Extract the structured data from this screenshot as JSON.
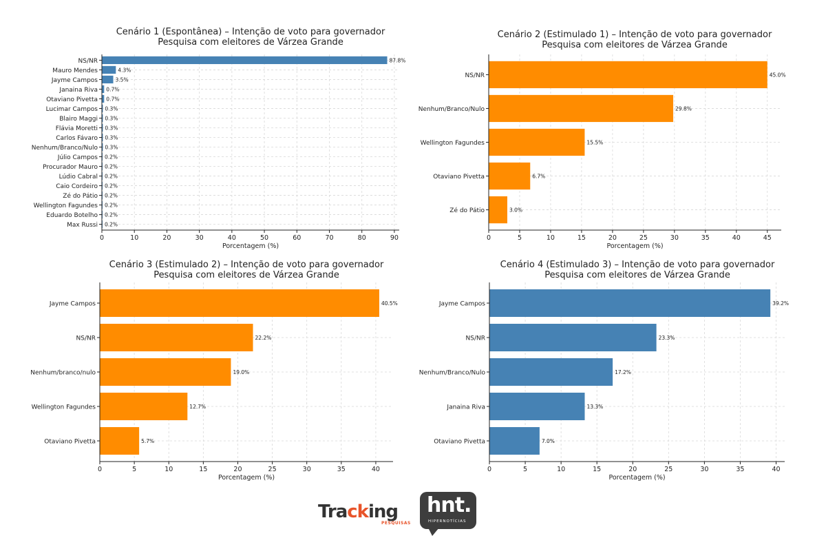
{
  "chart_data": [
    {
      "type": "bar",
      "orientation": "horizontal",
      "title": "Cenário 1 (Espontânea) – Intenção de voto para governador",
      "subtitle": "Pesquisa com eleitores de Várzea Grande",
      "xlabel": "Porcentagem (%)",
      "categories": [
        "NS/NR",
        "Mauro Mendes",
        "Jayme Campos",
        "Janaina Riva",
        "Otaviano Pivetta",
        "Lucimar Campos",
        "Blairo Maggi",
        "Flávia Moretti",
        "Carlos Fávaro",
        "Nenhum/Branco/Nulo",
        "Júlio Campos",
        "Procurador Mauro",
        "Lúdio Cabral",
        "Caio Cordeiro",
        "Zé do Pátio",
        "Wellington Fagundes",
        "Eduardo Botelho",
        "Max Russi"
      ],
      "values": [
        87.8,
        4.3,
        3.5,
        0.7,
        0.7,
        0.3,
        0.3,
        0.3,
        0.3,
        0.3,
        0.2,
        0.2,
        0.2,
        0.2,
        0.2,
        0.2,
        0.2,
        0.2
      ],
      "value_labels": [
        "87.8%",
        "4.3%",
        "3.5%",
        "0.7%",
        "0.7%",
        "0.3%",
        "0.3%",
        "0.3%",
        "0.3%",
        "0.3%",
        "0.2%",
        "0.2%",
        "0.2%",
        "0.2%",
        "0.2%",
        "0.2%",
        "0.2%",
        "0.2%"
      ],
      "xticks": [
        0,
        10,
        20,
        30,
        40,
        50,
        60,
        70,
        80,
        90
      ],
      "xlim": [
        0,
        91.5
      ],
      "color": "#4682b4",
      "grid": true
    },
    {
      "type": "bar",
      "orientation": "horizontal",
      "title": "Cenário 2 (Estimulado 1) – Intenção de voto para governador",
      "subtitle": "Pesquisa com eleitores de Várzea Grande",
      "xlabel": "Porcentagem (%)",
      "categories": [
        "NS/NR",
        "Nenhum/Branco/Nulo",
        "Wellington Fagundes",
        "Otaviano Pivetta",
        "Zé do Pátio"
      ],
      "values": [
        45.0,
        29.8,
        15.5,
        6.7,
        3.0
      ],
      "value_labels": [
        "45.0%",
        "29.8%",
        "15.5%",
        "6.7%",
        "3.0%"
      ],
      "xticks": [
        0,
        5,
        10,
        15,
        20,
        25,
        30,
        35,
        40,
        45
      ],
      "xlim": [
        0,
        47.25
      ],
      "color": "#ff8c00",
      "grid": true
    },
    {
      "type": "bar",
      "orientation": "horizontal",
      "title": "Cenário 3 (Estimulado 2) – Intenção de voto para governador",
      "subtitle": "Pesquisa com eleitores de Várzea Grande",
      "xlabel": "Porcentagem (%)",
      "categories": [
        "Jayme Campos",
        "NS/NR",
        "Nenhum/branco/nulo",
        "Wellington Fagundes",
        "Otaviano Pivetta"
      ],
      "values": [
        40.5,
        22.2,
        19.0,
        12.7,
        5.7
      ],
      "value_labels": [
        "40.5%",
        "22.2%",
        "19.0%",
        "12.7%",
        "5.7%"
      ],
      "xticks": [
        0,
        5,
        10,
        15,
        20,
        25,
        30,
        35,
        40
      ],
      "xlim": [
        0,
        42.5
      ],
      "color": "#ff8c00",
      "grid": true
    },
    {
      "type": "bar",
      "orientation": "horizontal",
      "title": "Cenário 4 (Estimulado 3) – Intenção de voto para governador",
      "subtitle": "Pesquisa com eleitores de Várzea Grande",
      "xlabel": "Porcentagem (%)",
      "categories": [
        "Jayme Campos",
        "NS/NR",
        "Nenhum/Branco/Nulo",
        "Janaina Riva",
        "Otaviano Pivetta"
      ],
      "values": [
        39.2,
        23.3,
        17.2,
        13.3,
        7.0
      ],
      "value_labels": [
        "39.2%",
        "23.3%",
        "17.2%",
        "13.3%",
        "7.0%"
      ],
      "xticks": [
        0,
        5,
        10,
        15,
        20,
        25,
        30,
        35,
        40
      ],
      "xlim": [
        0,
        41.2
      ],
      "color": "#4682b4",
      "grid": true
    }
  ],
  "logos": {
    "tracking_a": "Tra",
    "tracking_b": "ck",
    "tracking_c": "ing",
    "tracking_sub": "PESQUISAS",
    "hnt": "hnt.",
    "hnt_sub": "HIPERNOTÍCIAS"
  }
}
